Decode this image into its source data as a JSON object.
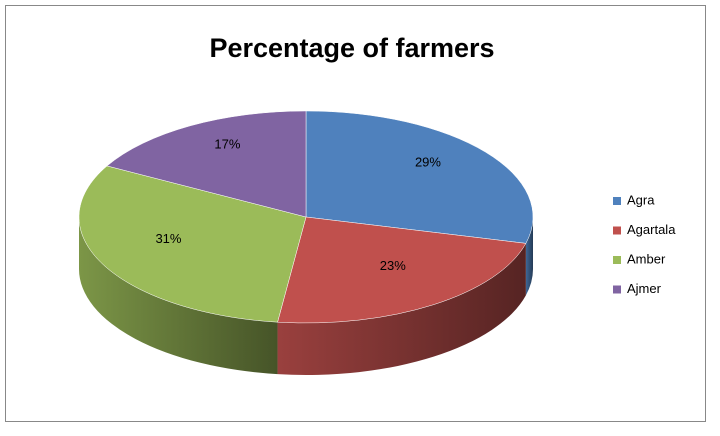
{
  "chart_data": {
    "type": "pie3d",
    "title": "Percentage of farmers",
    "categories": [
      "Agra",
      "Agartala",
      "Amber",
      "Ajmer"
    ],
    "values": [
      29,
      23,
      31,
      17
    ],
    "value_labels": [
      "29%",
      "23%",
      "31%",
      "17%"
    ],
    "colors": [
      "#4f81bd",
      "#c0504d",
      "#9bbb59",
      "#8064a2"
    ],
    "legend": "right"
  }
}
